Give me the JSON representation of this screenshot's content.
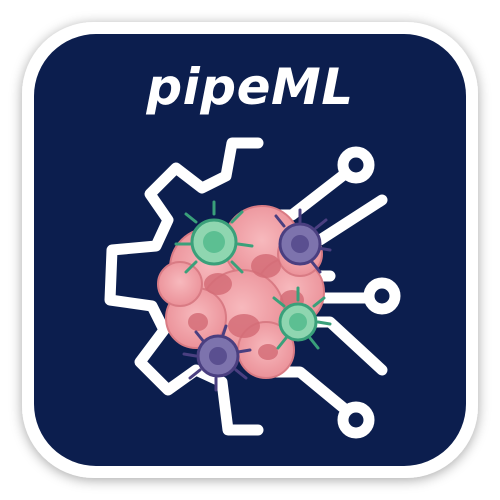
{
  "app": {
    "title": "pipeML"
  },
  "colors": {
    "badge_background": "#0c1e4e",
    "badge_border": "#ffffff",
    "line_art": "#ffffff",
    "tumor_pink": "#f2a0a6",
    "tumor_dark": "#d56e78",
    "tcell_green": "#8fd6b0",
    "tcell_dark": "#3aa07a",
    "purple_cell": "#7d73ad",
    "purple_dark": "#4a3f80"
  },
  "icons": {
    "left_half": "gear-half-icon",
    "right_half": "circuit-traces-icon",
    "center": "tumor-cell-cluster-icon"
  }
}
